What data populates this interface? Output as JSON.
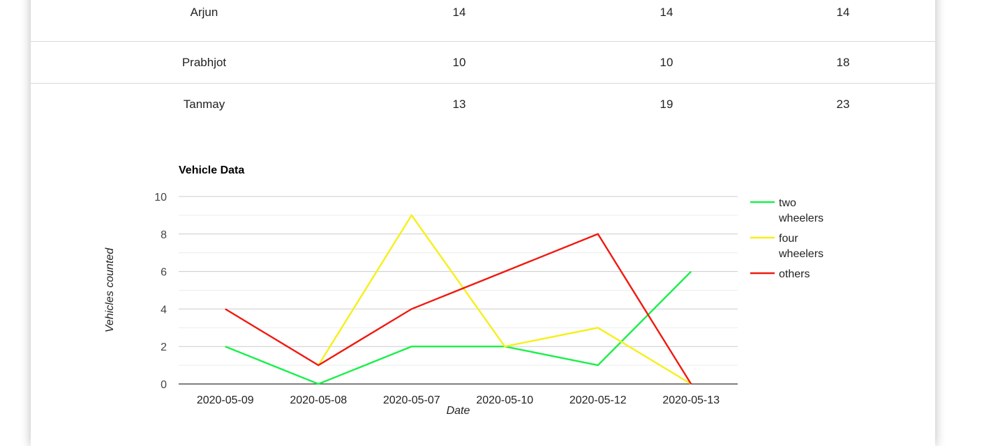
{
  "table": {
    "rows": [
      [
        "Arjun",
        "14",
        "14",
        "14"
      ],
      [
        "Prabhjot",
        "10",
        "10",
        "18"
      ],
      [
        "Tanmay",
        "13",
        "19",
        "23"
      ]
    ]
  },
  "chart_data": {
    "type": "line",
    "title": "Vehicle Data",
    "xlabel": "Date",
    "ylabel": "Vehicles counted",
    "categories": [
      "2020-05-09",
      "2020-05-08",
      "2020-05-07",
      "2020-05-10",
      "2020-05-12",
      "2020-05-13"
    ],
    "ylim": [
      0,
      10
    ],
    "yticks": [
      0,
      2,
      4,
      6,
      8,
      10
    ],
    "grid": true,
    "legend_position": "right",
    "series": [
      {
        "name": "two wheelers",
        "legend_lines": [
          "two",
          "wheelers"
        ],
        "color": "#19f04a",
        "values": [
          2,
          0,
          2,
          2,
          1,
          6
        ]
      },
      {
        "name": "four wheelers",
        "legend_lines": [
          "four",
          "wheelers"
        ],
        "color": "#f5f019",
        "values": [
          null,
          1,
          9,
          2,
          3,
          0
        ]
      },
      {
        "name": "others",
        "legend_lines": [
          "others"
        ],
        "color": "#f0190f",
        "values": [
          4,
          1,
          4,
          6,
          8,
          0
        ]
      }
    ]
  }
}
